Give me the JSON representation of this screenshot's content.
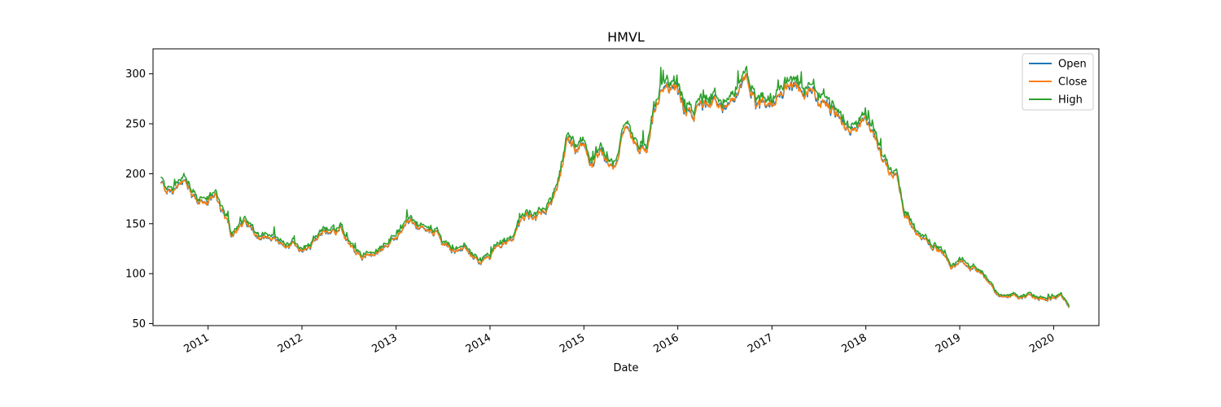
{
  "chart_data": {
    "type": "line",
    "title": "HMVL",
    "xlabel": "Date",
    "ylabel": "",
    "x_axis": "date",
    "xlim": [
      "2010-06-01",
      "2020-06-25"
    ],
    "ylim": [
      48,
      325
    ],
    "xticks": [
      "2011-01-01",
      "2012-01-01",
      "2013-01-01",
      "2014-01-01",
      "2015-01-01",
      "2016-01-01",
      "2017-01-01",
      "2018-01-01",
      "2019-01-01",
      "2020-01-01"
    ],
    "xtick_labels": [
      "2011",
      "2012",
      "2013",
      "2014",
      "2015",
      "2016",
      "2017",
      "2018",
      "2019",
      "2020"
    ],
    "yticks": [
      50,
      100,
      150,
      200,
      250,
      300
    ],
    "ytick_labels": [
      "50",
      "100",
      "150",
      "200",
      "250",
      "300"
    ],
    "legend_position": "top-right",
    "grid": false,
    "series_anchor": {
      "x": [
        "2010-07-01",
        "2010-07-20",
        "2010-08-10",
        "2010-09-01",
        "2010-09-20",
        "2010-10-10",
        "2010-11-01",
        "2010-12-01",
        "2011-01-01",
        "2011-02-01",
        "2011-03-01",
        "2011-04-01",
        "2011-05-01",
        "2011-06-01",
        "2011-07-01",
        "2011-08-01",
        "2011-09-01",
        "2011-10-01",
        "2011-11-01",
        "2011-12-01",
        "2012-01-01",
        "2012-02-01",
        "2012-03-01",
        "2012-04-01",
        "2012-05-01",
        "2012-06-01",
        "2012-07-01",
        "2012-08-01",
        "2012-09-01",
        "2012-10-01",
        "2012-11-01",
        "2012-12-01",
        "2013-01-01",
        "2013-02-01",
        "2013-03-01",
        "2013-04-01",
        "2013-05-01",
        "2013-06-01",
        "2013-07-01",
        "2013-08-01",
        "2013-09-01",
        "2013-10-01",
        "2013-11-01",
        "2013-12-01",
        "2014-01-01",
        "2014-02-01",
        "2014-03-01",
        "2014-04-01",
        "2014-05-01",
        "2014-06-01",
        "2014-07-01",
        "2014-08-01",
        "2014-09-01",
        "2014-10-01",
        "2014-11-01",
        "2014-12-01",
        "2015-01-01",
        "2015-02-01",
        "2015-03-01",
        "2015-04-01",
        "2015-05-01",
        "2015-06-01",
        "2015-07-01",
        "2015-08-01",
        "2015-09-01",
        "2015-10-01",
        "2015-11-01",
        "2015-12-01",
        "2016-01-01",
        "2016-02-01",
        "2016-03-01",
        "2016-04-01",
        "2016-05-01",
        "2016-06-01",
        "2016-07-01",
        "2016-08-01",
        "2016-09-01",
        "2016-10-01",
        "2016-11-01",
        "2016-12-01",
        "2017-01-01",
        "2017-02-01",
        "2017-03-01",
        "2017-04-01",
        "2017-05-01",
        "2017-06-01",
        "2017-07-01",
        "2017-08-01",
        "2017-09-01",
        "2017-10-01",
        "2017-11-01",
        "2017-12-01",
        "2018-01-01",
        "2018-02-01",
        "2018-03-01",
        "2018-04-01",
        "2018-05-01",
        "2018-06-01",
        "2018-07-01",
        "2018-08-01",
        "2018-09-01",
        "2018-10-01",
        "2018-11-01",
        "2018-12-01",
        "2019-01-01",
        "2019-02-01",
        "2019-03-01",
        "2019-04-01",
        "2019-05-01",
        "2019-06-01",
        "2019-07-01",
        "2019-08-01",
        "2019-09-01",
        "2019-10-01",
        "2019-11-01",
        "2019-12-01",
        "2020-01-01",
        "2020-02-01",
        "2020-03-01"
      ],
      "y": [
        190,
        185,
        182,
        184,
        190,
        188,
        178,
        170,
        172,
        180,
        160,
        140,
        145,
        150,
        140,
        135,
        135,
        130,
        125,
        128,
        122,
        130,
        138,
        144,
        141,
        143,
        130,
        120,
        118,
        116,
        125,
        130,
        135,
        150,
        153,
        145,
        140,
        142,
        130,
        126,
        122,
        125,
        115,
        112,
        118,
        128,
        132,
        132,
        155,
        160,
        160,
        165,
        170,
        205,
        235,
        225,
        225,
        210,
        218,
        215,
        205,
        245,
        235,
        225,
        220,
        260,
        285,
        290,
        280,
        265,
        255,
        270,
        275,
        270,
        270,
        272,
        280,
        295,
        265,
        270,
        268,
        282,
        290,
        285,
        285,
        280,
        275,
        270,
        262,
        248,
        240,
        245,
        252,
        245,
        220,
        205,
        200,
        160,
        150,
        135,
        130,
        125,
        120,
        105,
        112,
        108,
        105,
        100,
        90,
        78,
        75,
        80,
        75,
        78,
        75,
        75,
        76,
        77,
        65
      ]
    },
    "series": [
      {
        "name": "Open",
        "color": "#1f77b4"
      },
      {
        "name": "Close",
        "color": "#ff7f0e"
      },
      {
        "name": "High",
        "color": "#2ca02c"
      }
    ]
  }
}
